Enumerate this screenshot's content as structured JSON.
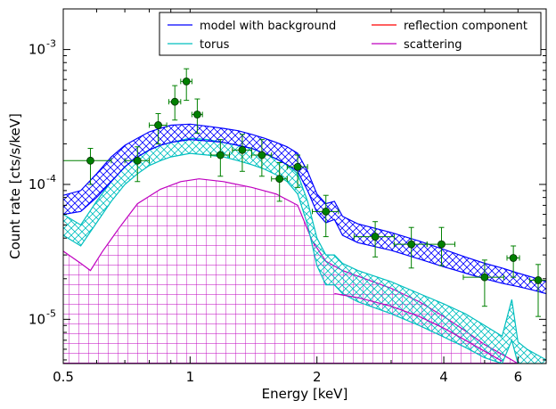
{
  "chart_data": {
    "type": "line",
    "xlabel": "Energy [keV]",
    "ylabel": "Count rate [cts/s/keV]",
    "xscale": "log",
    "yscale": "log",
    "xlim": [
      0.5,
      7.0
    ],
    "ylim": [
      4.7e-06,
      0.002
    ],
    "x_ticks": [
      {
        "value": 0.5,
        "label": "0.5"
      },
      {
        "value": 1,
        "label": "1"
      },
      {
        "value": 2,
        "label": "2"
      },
      {
        "value": 4,
        "label": "4"
      },
      {
        "value": 6,
        "label": "6"
      }
    ],
    "y_ticks": [
      {
        "value": 1e-05,
        "mant": "10",
        "exp": "-5"
      },
      {
        "value": 0.0001,
        "mant": "10",
        "exp": "-4"
      },
      {
        "value": 0.001,
        "mant": "10",
        "exp": "-3"
      }
    ],
    "legend": {
      "position": "top-right",
      "entries": [
        {
          "label": "model with background",
          "color": "#0000ff"
        },
        {
          "label": "reflection component",
          "color": "#ff0000"
        },
        {
          "label": "torus",
          "color": "#00bfbf"
        },
        {
          "label": "scattering",
          "color": "#bf00bf"
        }
      ]
    },
    "series": [
      {
        "name": "model with background",
        "color": "#0000ff",
        "hatch": "grid",
        "x": [
          0.5,
          0.55,
          0.6,
          0.65,
          0.7,
          0.75,
          0.8,
          0.85,
          0.9,
          1.0,
          1.1,
          1.2,
          1.3,
          1.4,
          1.5,
          1.6,
          1.7,
          1.8,
          1.9,
          2.0,
          2.1,
          2.2,
          2.3,
          2.5,
          3.0,
          3.5,
          4.0,
          4.5,
          5.0,
          5.5,
          6.0,
          6.5,
          7.0
        ],
        "upper": [
          8.3e-05,
          9e-05,
          0.00012,
          0.00016,
          0.000195,
          0.00022,
          0.000245,
          0.00026,
          0.000275,
          0.00028,
          0.00027,
          0.00026,
          0.00025,
          0.000235,
          0.00022,
          0.000205,
          0.00019,
          0.00017,
          0.000125,
          8.5e-05,
          7.2e-05,
          7.5e-05,
          5.8e-05,
          5.1e-05,
          4.4e-05,
          3.8e-05,
          3.3e-05,
          2.9e-05,
          2.6e-05,
          2.4e-05,
          2.2e-05,
          2.05e-05,
          1.9e-05
        ],
        "lower": [
          6e-05,
          6.3e-05,
          8e-05,
          0.000105,
          0.000135,
          0.00016,
          0.00018,
          0.000195,
          0.000205,
          0.000215,
          0.00021,
          0.000205,
          0.000195,
          0.000185,
          0.00017,
          0.000155,
          0.00014,
          0.000125,
          9e-05,
          6.2e-05,
          5.2e-05,
          5.5e-05,
          4.2e-05,
          3.7e-05,
          3.25e-05,
          2.8e-05,
          2.45e-05,
          2.2e-05,
          2e-05,
          1.85e-05,
          1.75e-05,
          1.65e-05,
          1.55e-05
        ]
      },
      {
        "name": "torus",
        "color": "#00bfbf",
        "hatch": "cross",
        "x": [
          0.5,
          0.55,
          0.6,
          0.65,
          0.7,
          0.75,
          0.8,
          0.85,
          0.9,
          1.0,
          1.1,
          1.2,
          1.3,
          1.4,
          1.5,
          1.6,
          1.7,
          1.8,
          1.9,
          2.0,
          2.1,
          2.2,
          2.3,
          2.5,
          3.0,
          3.5,
          4.0,
          4.5,
          5.0,
          5.5,
          5.8,
          6.0,
          6.3,
          7.0
        ],
        "upper": [
          6e-05,
          5e-05,
          7.5e-05,
          0.000105,
          0.000135,
          0.00016,
          0.00018,
          0.000195,
          0.000205,
          0.00022,
          0.000215,
          0.000205,
          0.000195,
          0.000185,
          0.00017,
          0.000155,
          0.00014,
          0.00012,
          7.5e-05,
          4e-05,
          3e-05,
          3e-05,
          2.6e-05,
          2.3e-05,
          1.9e-05,
          1.55e-05,
          1.3e-05,
          1.1e-05,
          9e-06,
          7.5e-06,
          1.4e-05,
          6.8e-06,
          6e-06,
          5e-06
        ],
        "lower": [
          4.2e-05,
          3.5e-05,
          5.2e-05,
          7.5e-05,
          0.0001,
          0.00012,
          0.000138,
          0.00015,
          0.00016,
          0.00017,
          0.000165,
          0.00016,
          0.00015,
          0.00014,
          0.00013,
          0.000118,
          0.000105,
          8.5e-05,
          5e-05,
          2.5e-05,
          1.8e-05,
          1.8e-05,
          1.55e-05,
          1.35e-05,
          1.1e-05,
          9e-06,
          7.4e-06,
          6.2e-06,
          5.2e-06,
          4.7e-06,
          7e-06,
          4.7e-06,
          4.7e-06,
          4.7e-06
        ]
      },
      {
        "name": "scattering",
        "color": "#bf00bf",
        "hatch": "grid",
        "x": [
          0.5,
          0.55,
          0.58,
          0.62,
          0.68,
          0.75,
          0.85,
          0.95,
          1.05,
          1.2,
          1.4,
          1.6,
          1.8,
          1.95,
          2.1,
          2.3,
          2.6,
          3.0,
          3.5,
          4.0,
          4.5,
          5.0,
          5.5,
          6.0
        ],
        "upper": [
          3.2e-05,
          2.6e-05,
          2.3e-05,
          3.2e-05,
          4.8e-05,
          7.2e-05,
          9.2e-05,
          0.000105,
          0.00011,
          0.000105,
          9.5e-05,
          8.5e-05,
          7e-05,
          3.8e-05,
          2.7e-05,
          2.3e-05,
          2e-05,
          1.7e-05,
          1.35e-05,
          1.05e-05,
          8.2e-06,
          6.5e-06,
          5.5e-06,
          4.7e-06
        ],
        "lower": [
          4.7e-06,
          4.7e-06,
          4.7e-06,
          4.7e-06,
          4.7e-06,
          4.7e-06,
          4.7e-06,
          4.7e-06,
          4.7e-06,
          4.7e-06,
          4.7e-06,
          4.7e-06,
          4.7e-06,
          4.7e-06,
          4.7e-06,
          4.7e-06,
          4.7e-06,
          4.7e-06,
          4.7e-06,
          4.7e-06,
          4.7e-06,
          4.7e-06,
          4.7e-06,
          4.7e-06
        ]
      }
    ],
    "extra_curves": [
      {
        "color": "#bf00bf",
        "x": [
          2.2,
          2.5,
          3.0,
          3.5,
          4.0,
          4.5,
          5.0,
          5.5
        ],
        "y": [
          1.55e-05,
          1.45e-05,
          1.25e-05,
          1.05e-05,
          8.6e-06,
          7e-06,
          5.8e-06,
          4.9e-06
        ]
      }
    ],
    "data_points": {
      "color": "#008000",
      "points": [
        {
          "x": 0.58,
          "y": 0.00015,
          "xerr": [
            0.08,
            0.07
          ],
          "yerr": [
            5e-05,
            3.5e-05
          ]
        },
        {
          "x": 0.75,
          "y": 0.00015,
          "xerr": [
            0.05,
            0.05
          ],
          "yerr": [
            4.5e-05,
            4e-05
          ]
        },
        {
          "x": 0.84,
          "y": 0.000275,
          "xerr": [
            0.04,
            0.04
          ],
          "yerr": [
            7.5e-05,
            6e-05
          ]
        },
        {
          "x": 0.92,
          "y": 0.00041,
          "xerr": [
            0.03,
            0.03
          ],
          "yerr": [
            0.00011,
            0.00013
          ]
        },
        {
          "x": 0.98,
          "y": 0.00058,
          "xerr": [
            0.03,
            0.03
          ],
          "yerr": [
            0.00016,
            0.00014
          ]
        },
        {
          "x": 1.04,
          "y": 0.00033,
          "xerr": [
            0.03,
            0.03
          ],
          "yerr": [
            9e-05,
            0.0001
          ]
        },
        {
          "x": 1.18,
          "y": 0.000165,
          "xerr": [
            0.06,
            0.06
          ],
          "yerr": [
            5e-05,
            5e-05
          ]
        },
        {
          "x": 1.33,
          "y": 0.00018,
          "xerr": [
            0.07,
            0.07
          ],
          "yerr": [
            5.5e-05,
            5.5e-05
          ]
        },
        {
          "x": 1.48,
          "y": 0.000165,
          "xerr": [
            0.08,
            0.08
          ],
          "yerr": [
            5e-05,
            5e-05
          ]
        },
        {
          "x": 1.63,
          "y": 0.00011,
          "xerr": [
            0.07,
            0.07
          ],
          "yerr": [
            3.5e-05,
            3.5e-05
          ]
        },
        {
          "x": 1.8,
          "y": 0.000135,
          "xerr": [
            0.1,
            0.1
          ],
          "yerr": [
            4e-05,
            3e-05
          ]
        },
        {
          "x": 2.1,
          "y": 6.3e-05,
          "xerr": [
            0.15,
            0.15
          ],
          "yerr": [
            2.2e-05,
            2e-05
          ]
        },
        {
          "x": 2.75,
          "y": 4.1e-05,
          "xerr": [
            0.3,
            0.3
          ],
          "yerr": [
            1.2e-05,
            1.2e-05
          ]
        },
        {
          "x": 3.35,
          "y": 3.6e-05,
          "xerr": [
            0.3,
            0.3
          ],
          "yerr": [
            1.2e-05,
            1.2e-05
          ]
        },
        {
          "x": 3.95,
          "y": 3.6e-05,
          "xerr": [
            0.3,
            0.3
          ],
          "yerr": [
            1.1e-05,
            1.2e-05
          ]
        },
        {
          "x": 5.0,
          "y": 2.05e-05,
          "xerr": [
            0.55,
            0.55
          ],
          "yerr": [
            8e-06,
            7e-06
          ]
        },
        {
          "x": 5.85,
          "y": 2.85e-05,
          "xerr": [
            0.2,
            0.2
          ],
          "yerr": [
            8e-06,
            6.5e-06
          ]
        },
        {
          "x": 6.7,
          "y": 1.95e-05,
          "xerr": [
            0.3,
            0.3
          ],
          "yerr": [
            9e-06,
            6e-06
          ]
        }
      ]
    }
  }
}
